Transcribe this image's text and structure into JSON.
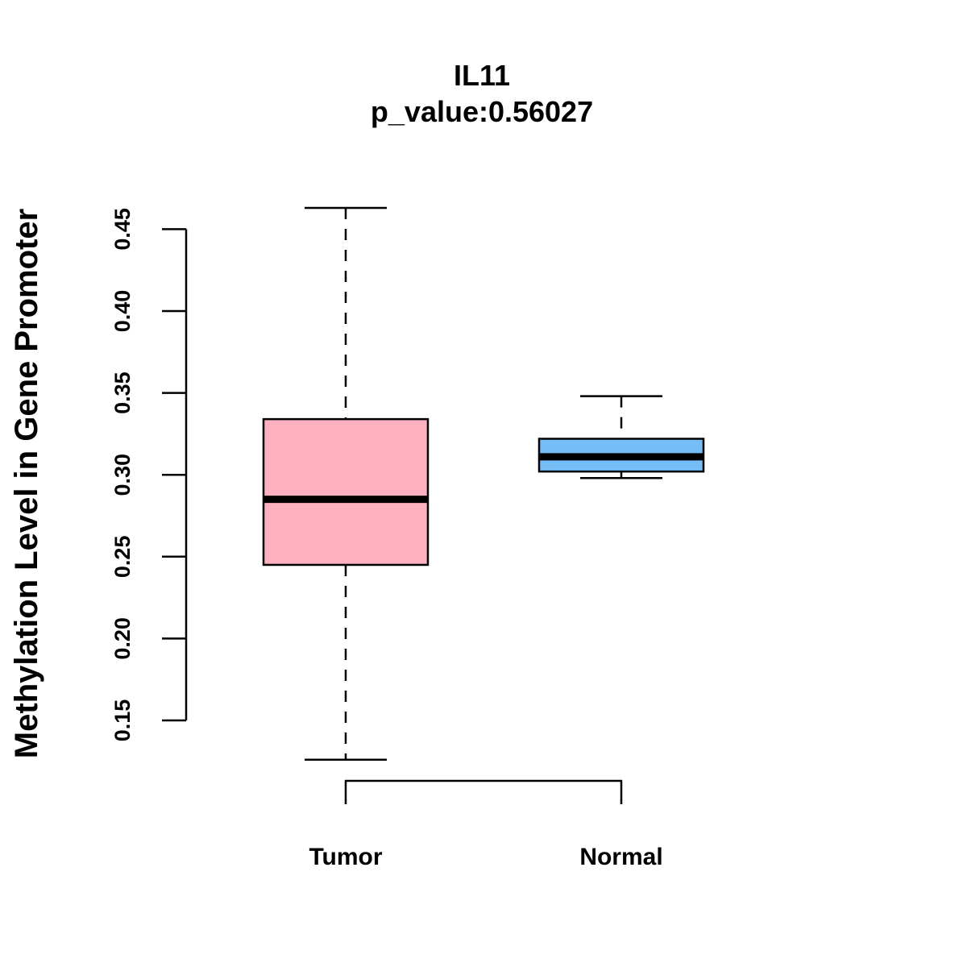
{
  "chart_data": {
    "type": "boxplot",
    "title": "IL11",
    "subtitle": "p_value:0.56027",
    "xlabel": "",
    "ylabel": "Methylation Level in Gene Promoter",
    "ylim": [
      0.12,
      0.47
    ],
    "yticks": [
      0.15,
      0.2,
      0.25,
      0.3,
      0.35,
      0.4,
      0.45
    ],
    "ytick_labels": [
      "0.15",
      "0.20",
      "0.25",
      "0.30",
      "0.35",
      "0.40",
      "0.45"
    ],
    "grid": false,
    "categories": [
      "Tumor",
      "Normal"
    ],
    "boxes": [
      {
        "name": "Tumor",
        "whisker_low": 0.126,
        "q1": 0.245,
        "median": 0.285,
        "q3": 0.334,
        "whisker_high": 0.463,
        "color": "#FDB0C0"
      },
      {
        "name": "Normal",
        "whisker_low": 0.298,
        "q1": 0.302,
        "median": 0.311,
        "q3": 0.322,
        "whisker_high": 0.348,
        "color": "#75BDF6"
      }
    ],
    "comparison_bracket": {
      "between": [
        "Tumor",
        "Normal"
      ]
    }
  }
}
